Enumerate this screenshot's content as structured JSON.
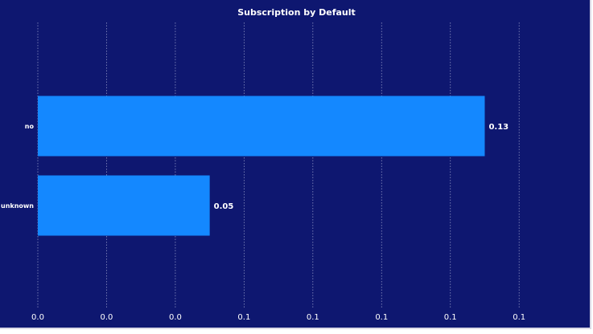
{
  "chart_data": {
    "type": "bar",
    "orientation": "horizontal",
    "title": "Subscription by Default",
    "xlabel": "",
    "ylabel": "",
    "categories": [
      "no",
      "unknown"
    ],
    "values": [
      0.13,
      0.05
    ],
    "value_labels": [
      "0.13",
      "0.05"
    ],
    "xlim": [
      0,
      0.1547
    ],
    "x_ticks": [
      0.0,
      0.02,
      0.04,
      0.06,
      0.08,
      0.1,
      0.12,
      0.14
    ],
    "x_tick_labels": [
      "0.0",
      "0.0",
      "0.0",
      "0.1",
      "0.1",
      "0.1",
      "0.1",
      "0.1"
    ],
    "grid": "vertical dotted",
    "legend": "none"
  },
  "colors": {
    "background": "#0e1770",
    "bar": "#1488ff",
    "text": "#ffffff",
    "grid": "#8a90c0"
  }
}
